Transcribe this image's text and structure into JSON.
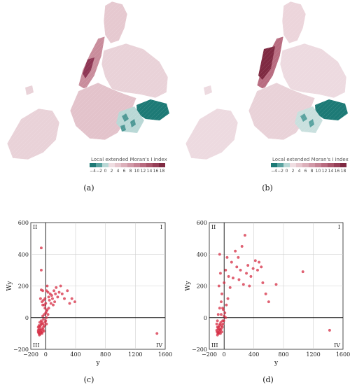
{
  "panels": {
    "a": {
      "caption": "(a)"
    },
    "b": {
      "caption": "(b)"
    },
    "c": {
      "caption": "(c)"
    },
    "d": {
      "caption": "(d)"
    }
  },
  "legend": {
    "title": "Local extended Moran's I index",
    "ticks": [
      "−4",
      "−2",
      "0",
      "2",
      "4",
      "6",
      "8",
      "10",
      "12",
      "14",
      "16",
      "18"
    ],
    "colors": [
      "#1d7a76",
      "#5aa3a0",
      "#b9d8d6",
      "#efdde1",
      "#e6c6cd",
      "#dcb0ba",
      "#d199a7",
      "#c68394",
      "#b96c80",
      "#a9566b",
      "#974058",
      "#7f2a42"
    ]
  },
  "map_style": {
    "base": "#e8cdd3",
    "dark": "#8a3450",
    "teal": "#1d7a76",
    "light": "#f1e4e7"
  },
  "chart_data": [
    {
      "type": "scatter",
      "panel": "c",
      "xlabel": "y",
      "ylabel": "Wy",
      "xlim": [
        -200,
        1600
      ],
      "ylim": [
        -200,
        600
      ],
      "xticks": [
        "−200",
        "0",
        "400",
        "800",
        "1200",
        "1600"
      ],
      "xtick_values": [
        -200,
        0,
        400,
        800,
        1200,
        1600
      ],
      "yticks": [
        "−200",
        "0",
        "200",
        "400",
        "600"
      ],
      "ytick_values": [
        -200,
        0,
        200,
        400,
        600
      ],
      "quadrants": {
        "I": "I",
        "II": "II",
        "III": "III",
        "IV": "IV"
      },
      "grid": true,
      "point_color": "#d62f45",
      "points": [
        [
          -60,
          440
        ],
        [
          -60,
          300
        ],
        [
          -60,
          175
        ],
        [
          -40,
          170
        ],
        [
          -70,
          120
        ],
        [
          -50,
          100
        ],
        [
          -20,
          80
        ],
        [
          -10,
          60
        ],
        [
          10,
          170
        ],
        [
          20,
          200
        ],
        [
          30,
          160
        ],
        [
          40,
          130
        ],
        [
          50,
          110
        ],
        [
          60,
          150
        ],
        [
          70,
          90
        ],
        [
          80,
          140
        ],
        [
          90,
          120
        ],
        [
          100,
          80
        ],
        [
          110,
          170
        ],
        [
          120,
          100
        ],
        [
          130,
          150
        ],
        [
          140,
          190
        ],
        [
          160,
          130
        ],
        [
          180,
          160
        ],
        [
          200,
          200
        ],
        [
          220,
          150
        ],
        [
          250,
          120
        ],
        [
          290,
          170
        ],
        [
          320,
          90
        ],
        [
          350,
          120
        ],
        [
          390,
          100
        ],
        [
          20,
          50
        ],
        [
          40,
          60
        ],
        [
          0,
          30
        ],
        [
          -20,
          20
        ],
        [
          -40,
          10
        ],
        [
          10,
          0
        ],
        [
          30,
          20
        ],
        [
          -30,
          -10
        ],
        [
          -60,
          -20
        ],
        [
          -80,
          -30
        ],
        [
          -90,
          -50
        ],
        [
          -100,
          -60
        ],
        [
          -90,
          -70
        ],
        [
          -80,
          -80
        ],
        [
          -70,
          -90
        ],
        [
          -60,
          -95
        ],
        [
          -50,
          -100
        ],
        [
          -90,
          -100
        ],
        [
          -100,
          -90
        ],
        [
          -80,
          -60
        ],
        [
          -70,
          -50
        ],
        [
          -60,
          -40
        ],
        [
          -50,
          -30
        ],
        [
          -40,
          -40
        ],
        [
          -30,
          -60
        ],
        [
          -20,
          -50
        ],
        [
          -10,
          -30
        ],
        [
          0,
          -20
        ],
        [
          10,
          -40
        ],
        [
          -100,
          -80
        ],
        [
          -95,
          -95
        ],
        [
          -85,
          -110
        ],
        [
          -75,
          -105
        ],
        [
          -65,
          -80
        ],
        [
          -55,
          -70
        ],
        [
          -45,
          -90
        ],
        [
          -35,
          -75
        ],
        [
          -25,
          -85
        ],
        [
          -40,
          80
        ],
        [
          -30,
          110
        ],
        [
          -10,
          120
        ],
        [
          0,
          90
        ],
        [
          10,
          40
        ],
        [
          1490,
          -100
        ]
      ]
    },
    {
      "type": "scatter",
      "panel": "d",
      "xlabel": "y",
      "ylabel": "Wy",
      "xlim": [
        -200,
        1600
      ],
      "ylim": [
        -200,
        600
      ],
      "xticks": [
        "−200",
        "0",
        "400",
        "800",
        "1200",
        "1600"
      ],
      "xtick_values": [
        -200,
        0,
        400,
        800,
        1200,
        1600
      ],
      "yticks": [
        "−200",
        "0",
        "200",
        "400",
        "600"
      ],
      "ytick_values": [
        -200,
        0,
        200,
        400,
        600
      ],
      "quadrants": {
        "I": "I",
        "II": "II",
        "III": "III",
        "IV": "IV"
      },
      "grid": true,
      "point_color": "#d62f45",
      "points": [
        [
          -60,
          400
        ],
        [
          -50,
          280
        ],
        [
          -70,
          200
        ],
        [
          -40,
          100
        ],
        [
          -20,
          60
        ],
        [
          0,
          220
        ],
        [
          20,
          300
        ],
        [
          40,
          380
        ],
        [
          60,
          260
        ],
        [
          80,
          190
        ],
        [
          100,
          350
        ],
        [
          120,
          250
        ],
        [
          150,
          420
        ],
        [
          170,
          320
        ],
        [
          190,
          380
        ],
        [
          200,
          240
        ],
        [
          220,
          300
        ],
        [
          240,
          450
        ],
        [
          260,
          210
        ],
        [
          280,
          520
        ],
        [
          300,
          280
        ],
        [
          320,
          330
        ],
        [
          340,
          200
        ],
        [
          360,
          260
        ],
        [
          390,
          310
        ],
        [
          420,
          360
        ],
        [
          450,
          300
        ],
        [
          470,
          350
        ],
        [
          500,
          320
        ],
        [
          520,
          220
        ],
        [
          560,
          150
        ],
        [
          600,
          100
        ],
        [
          700,
          210
        ],
        [
          1060,
          290
        ],
        [
          1420,
          -80
        ],
        [
          -10,
          50
        ],
        [
          10,
          30
        ],
        [
          30,
          80
        ],
        [
          50,
          120
        ],
        [
          -30,
          150
        ],
        [
          -60,
          60
        ],
        [
          -80,
          20
        ],
        [
          -90,
          -20
        ],
        [
          -100,
          -40
        ],
        [
          -90,
          -60
        ],
        [
          -80,
          -70
        ],
        [
          -70,
          -80
        ],
        [
          -60,
          -90
        ],
        [
          -50,
          -100
        ],
        [
          -95,
          -90
        ],
        [
          -85,
          -100
        ],
        [
          -75,
          -60
        ],
        [
          -65,
          -50
        ],
        [
          -55,
          -40
        ],
        [
          -45,
          -30
        ],
        [
          -35,
          -50
        ],
        [
          -25,
          -60
        ],
        [
          -15,
          -40
        ],
        [
          -5,
          -20
        ],
        [
          -100,
          -80
        ],
        [
          -90,
          -110
        ],
        [
          -80,
          -95
        ],
        [
          -70,
          -100
        ],
        [
          -60,
          -70
        ],
        [
          -50,
          -80
        ],
        [
          -40,
          -70
        ],
        [
          -30,
          -90
        ],
        [
          -20,
          -20
        ],
        [
          0,
          10
        ],
        [
          20,
          0
        ],
        [
          -40,
          20
        ]
      ]
    }
  ]
}
